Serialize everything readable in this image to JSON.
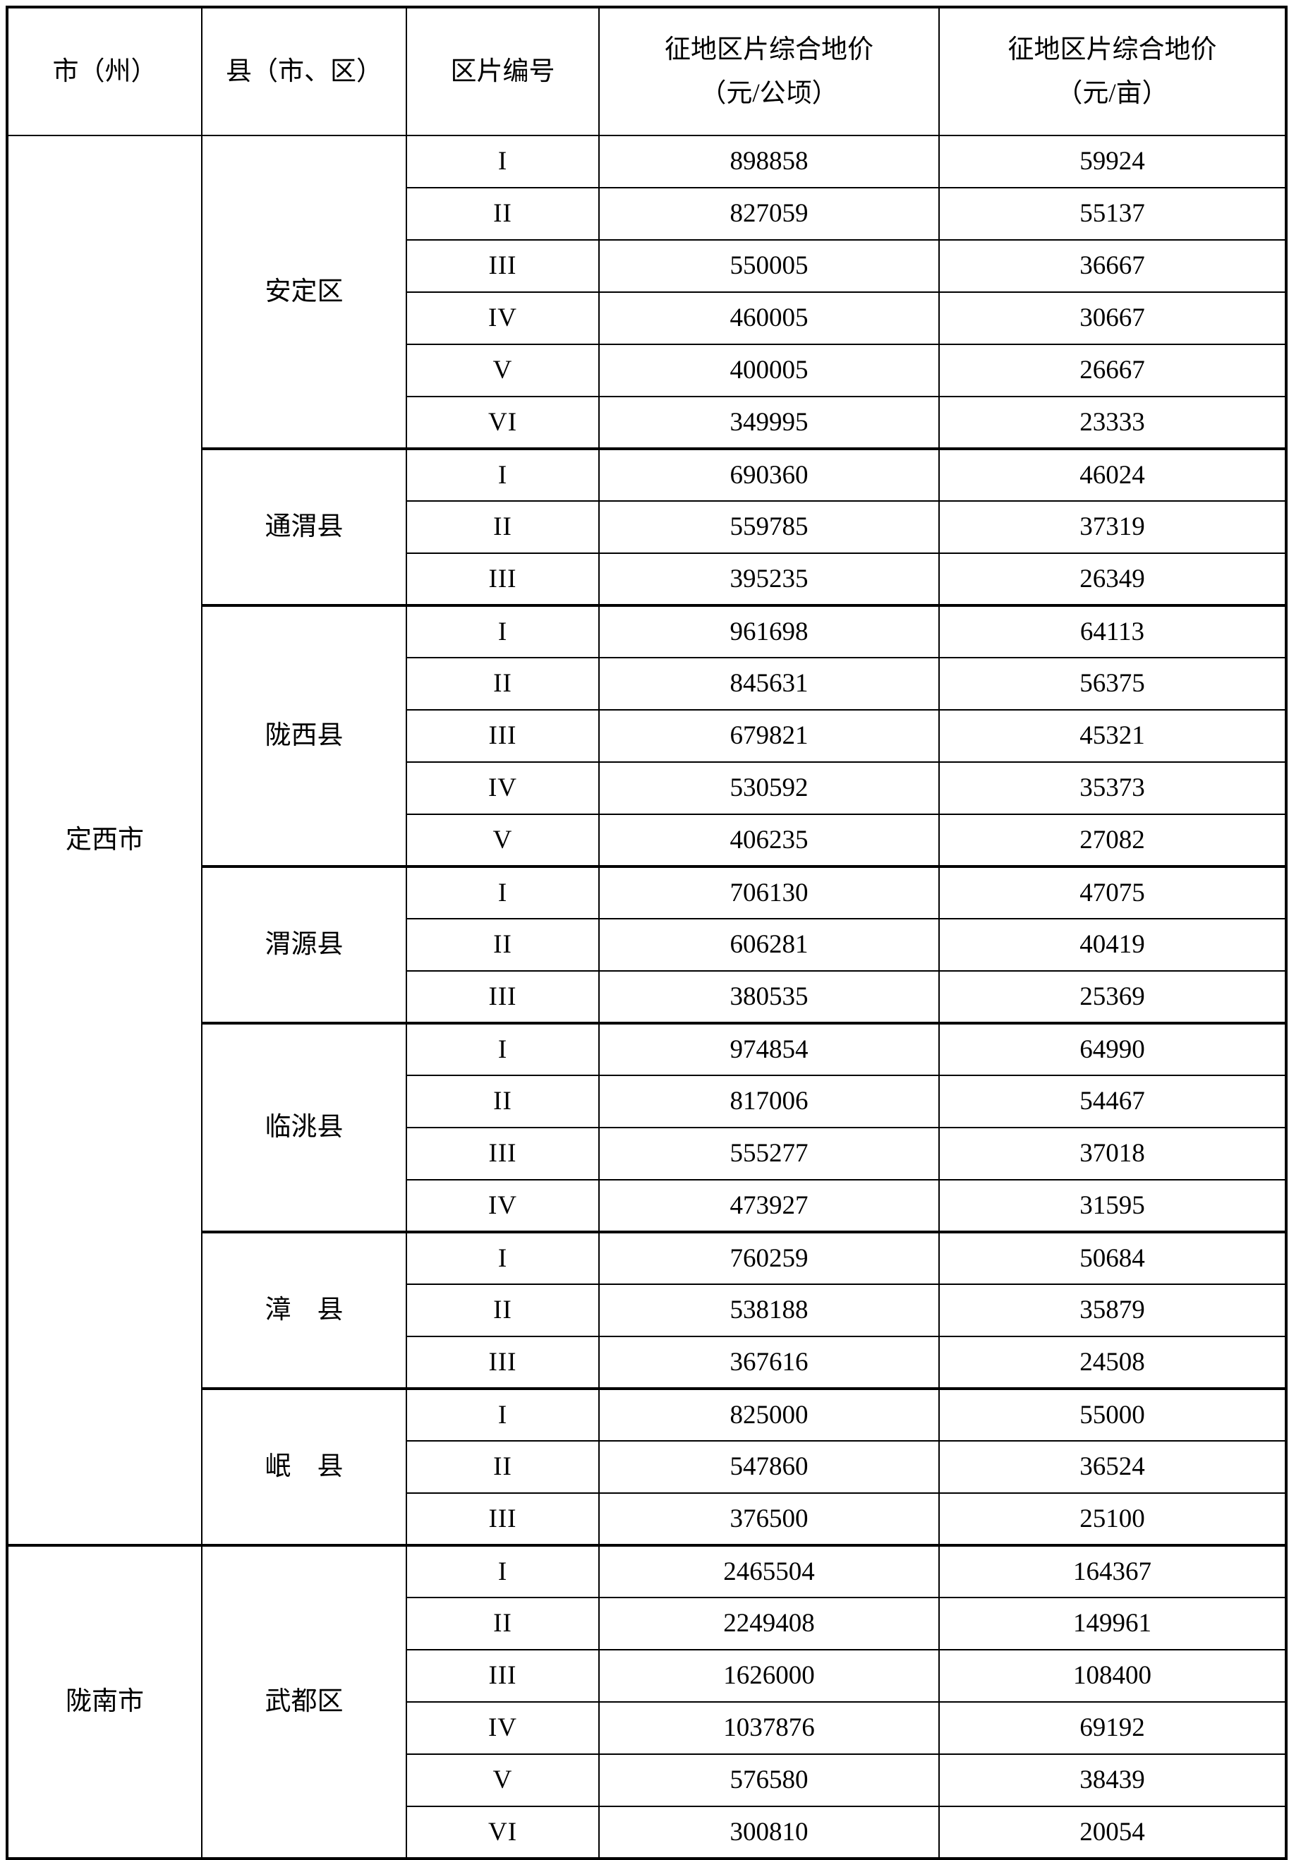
{
  "table": {
    "headers": {
      "city": "市（州）",
      "county": "县（市、区）",
      "zone": "区片编号",
      "price_hectare_line1": "征地区片综合地价",
      "price_hectare_line2": "（元/公顷）",
      "price_mu_line1": "征地区片综合地价",
      "price_mu_line2": "（元/亩）"
    },
    "cities": [
      {
        "name": "定西市",
        "counties": [
          {
            "name": "安定区",
            "zones": [
              {
                "no": "I",
                "price_per_hectare": "898858",
                "price_per_mu": "59924"
              },
              {
                "no": "II",
                "price_per_hectare": "827059",
                "price_per_mu": "55137"
              },
              {
                "no": "III",
                "price_per_hectare": "550005",
                "price_per_mu": "36667"
              },
              {
                "no": "IV",
                "price_per_hectare": "460005",
                "price_per_mu": "30667"
              },
              {
                "no": "V",
                "price_per_hectare": "400005",
                "price_per_mu": "26667"
              },
              {
                "no": "VI",
                "price_per_hectare": "349995",
                "price_per_mu": "23333"
              }
            ]
          },
          {
            "name": "通渭县",
            "zones": [
              {
                "no": "I",
                "price_per_hectare": "690360",
                "price_per_mu": "46024"
              },
              {
                "no": "II",
                "price_per_hectare": "559785",
                "price_per_mu": "37319"
              },
              {
                "no": "III",
                "price_per_hectare": "395235",
                "price_per_mu": "26349"
              }
            ]
          },
          {
            "name": "陇西县",
            "zones": [
              {
                "no": "I",
                "price_per_hectare": "961698",
                "price_per_mu": "64113"
              },
              {
                "no": "II",
                "price_per_hectare": "845631",
                "price_per_mu": "56375"
              },
              {
                "no": "III",
                "price_per_hectare": "679821",
                "price_per_mu": "45321"
              },
              {
                "no": "IV",
                "price_per_hectare": "530592",
                "price_per_mu": "35373"
              },
              {
                "no": "V",
                "price_per_hectare": "406235",
                "price_per_mu": "27082"
              }
            ]
          },
          {
            "name": "渭源县",
            "zones": [
              {
                "no": "I",
                "price_per_hectare": "706130",
                "price_per_mu": "47075"
              },
              {
                "no": "II",
                "price_per_hectare": "606281",
                "price_per_mu": "40419"
              },
              {
                "no": "III",
                "price_per_hectare": "380535",
                "price_per_mu": "25369"
              }
            ]
          },
          {
            "name": "临洮县",
            "zones": [
              {
                "no": "I",
                "price_per_hectare": "974854",
                "price_per_mu": "64990"
              },
              {
                "no": "II",
                "price_per_hectare": "817006",
                "price_per_mu": "54467"
              },
              {
                "no": "III",
                "price_per_hectare": "555277",
                "price_per_mu": "37018"
              },
              {
                "no": "IV",
                "price_per_hectare": "473927",
                "price_per_mu": "31595"
              }
            ]
          },
          {
            "name": "漳　县",
            "zones": [
              {
                "no": "I",
                "price_per_hectare": "760259",
                "price_per_mu": "50684"
              },
              {
                "no": "II",
                "price_per_hectare": "538188",
                "price_per_mu": "35879"
              },
              {
                "no": "III",
                "price_per_hectare": "367616",
                "price_per_mu": "24508"
              }
            ]
          },
          {
            "name": "岷　县",
            "zones": [
              {
                "no": "I",
                "price_per_hectare": "825000",
                "price_per_mu": "55000"
              },
              {
                "no": "II",
                "price_per_hectare": "547860",
                "price_per_mu": "36524"
              },
              {
                "no": "III",
                "price_per_hectare": "376500",
                "price_per_mu": "25100"
              }
            ]
          }
        ]
      },
      {
        "name": "陇南市",
        "counties": [
          {
            "name": "武都区",
            "zones": [
              {
                "no": "I",
                "price_per_hectare": "2465504",
                "price_per_mu": "164367"
              },
              {
                "no": "II",
                "price_per_hectare": "2249408",
                "price_per_mu": "149961"
              },
              {
                "no": "III",
                "price_per_hectare": "1626000",
                "price_per_mu": "108400"
              },
              {
                "no": "IV",
                "price_per_hectare": "1037876",
                "price_per_mu": "69192"
              },
              {
                "no": "V",
                "price_per_hectare": "576580",
                "price_per_mu": "38439"
              },
              {
                "no": "VI",
                "price_per_hectare": "300810",
                "price_per_mu": "20054"
              }
            ]
          }
        ]
      }
    ]
  }
}
